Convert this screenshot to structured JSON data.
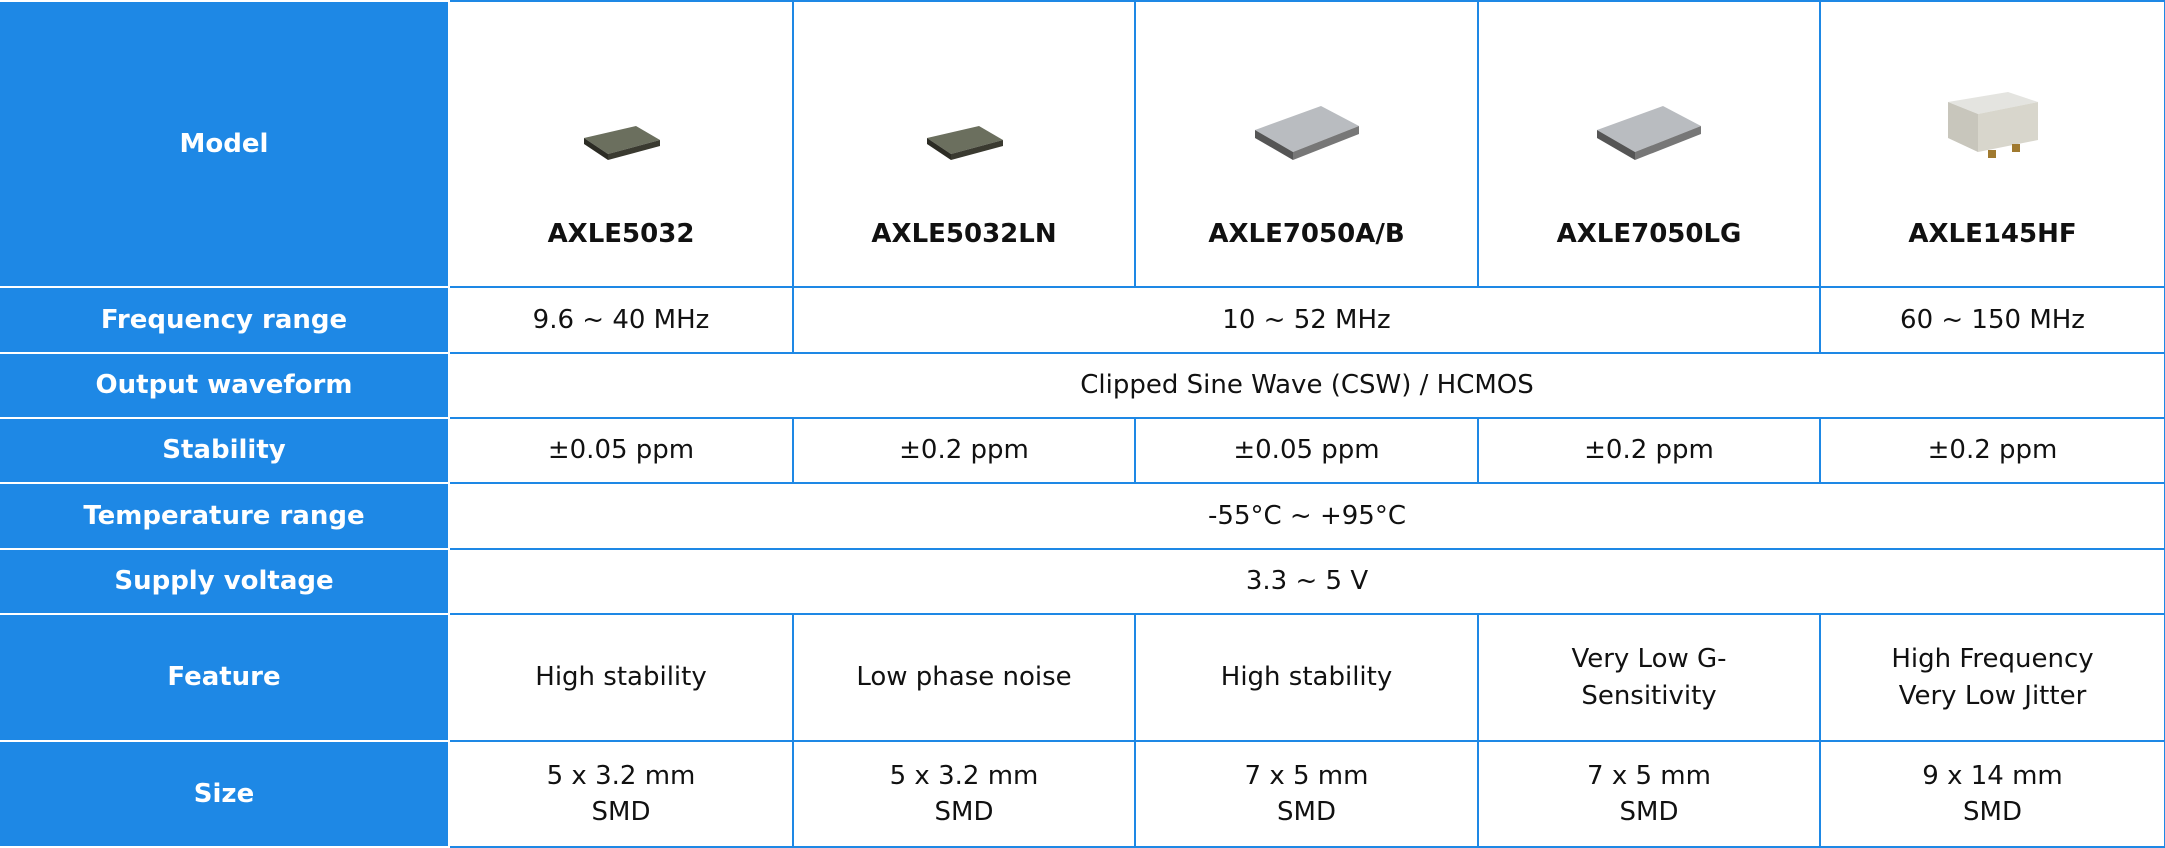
{
  "table": {
    "rows": [
      {
        "header": "Model",
        "cells": [
          "AXLE5032",
          "AXLE5032LN",
          "AXLE7050A/B",
          "AXLE7050LG",
          "AXLE145HF"
        ]
      },
      {
        "header": "Frequency range",
        "cells": [
          "9.6 ~ 40 MHz",
          "10 ~ 52 MHz",
          "60 ~ 150 MHz"
        ]
      },
      {
        "header": "Output waveform",
        "cells": [
          "Clipped Sine Wave (CSW) / HCMOS"
        ]
      },
      {
        "header": "Stability",
        "cells": [
          "±0.05 ppm",
          "±0.2 ppm",
          "±0.05 ppm",
          "±0.2 ppm",
          "±0.2 ppm"
        ]
      },
      {
        "header": "Temperature range",
        "cells": [
          "-55°C ~ +95°C"
        ]
      },
      {
        "header": "Supply voltage",
        "cells": [
          "3.3 ~ 5 V"
        ]
      },
      {
        "header": "Feature",
        "cells": [
          [
            "High stability"
          ],
          [
            "Low phase noise"
          ],
          [
            "High stability"
          ],
          [
            "Very Low G-",
            "Sensitivity"
          ],
          [
            "High Frequency",
            "Very Low Jitter"
          ]
        ]
      },
      {
        "header": "Size",
        "cells": [
          [
            "5 x 3.2 mm",
            "SMD"
          ],
          [
            "5 x 3.2 mm",
            "SMD"
          ],
          [
            "7 x 5 mm",
            "SMD"
          ],
          [
            "7 x 5 mm",
            "SMD"
          ],
          [
            "9 x 14 mm",
            "SMD"
          ]
        ]
      }
    ]
  }
}
